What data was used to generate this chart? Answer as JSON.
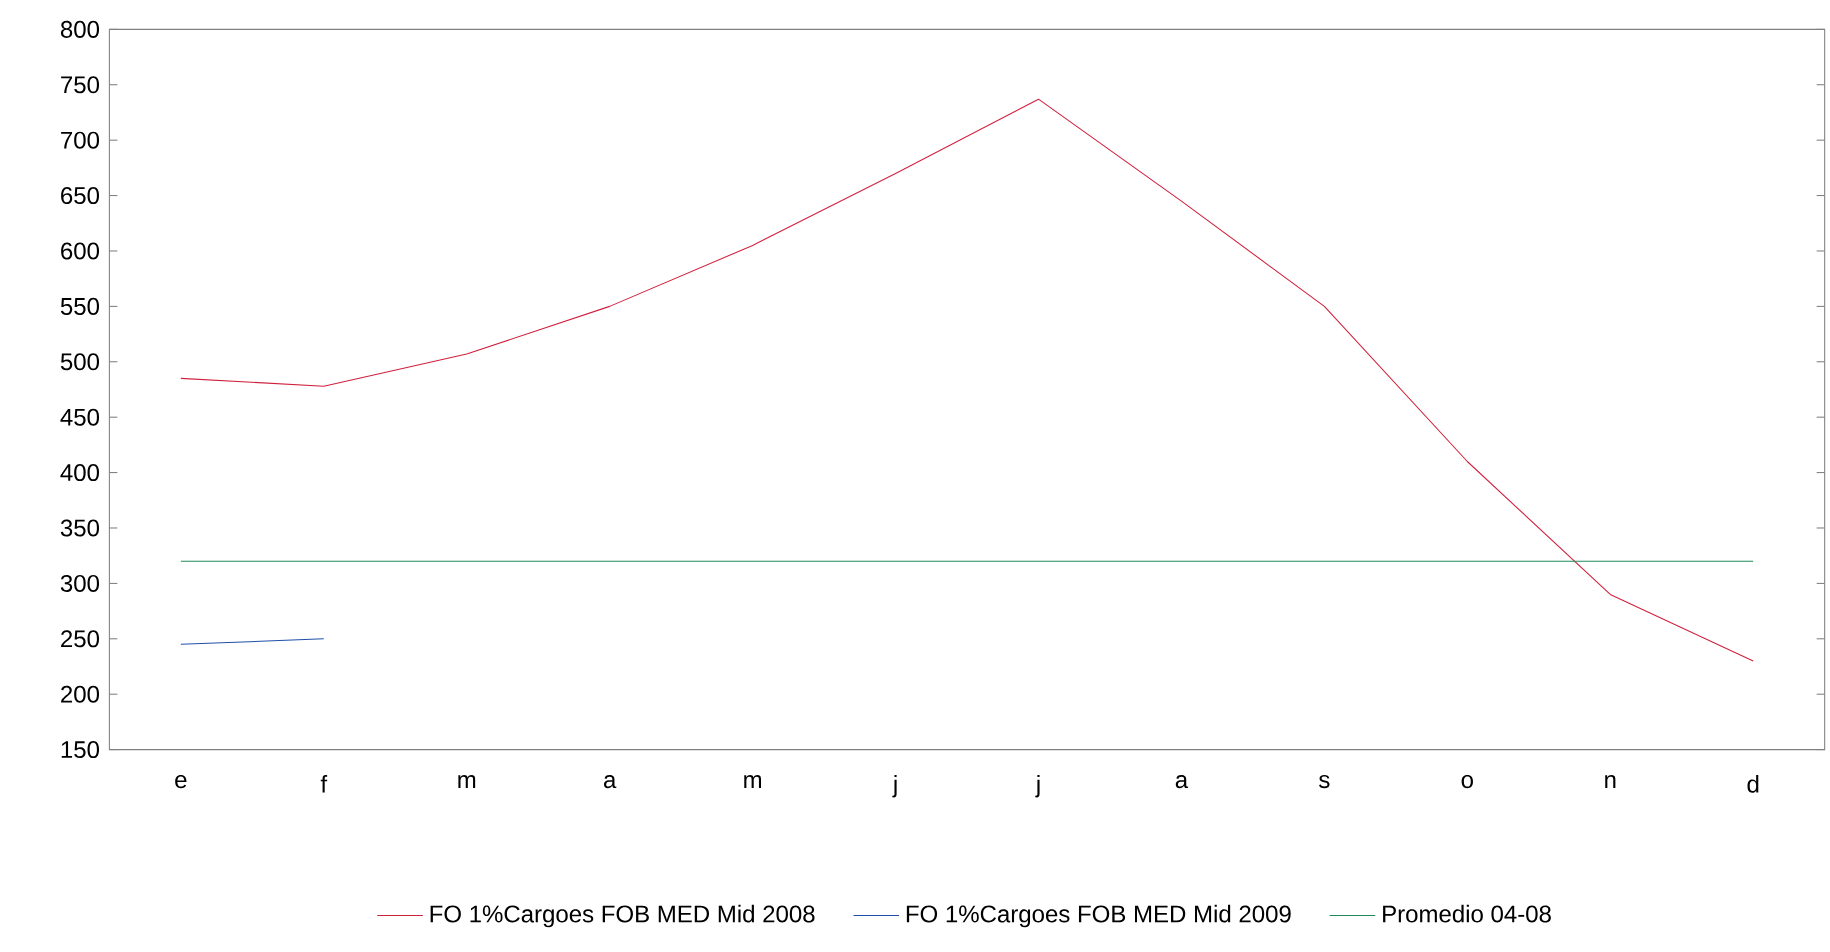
{
  "chart_data": {
    "type": "line",
    "categories": [
      "e",
      "f",
      "m",
      "a",
      "m",
      "j",
      "j",
      "a",
      "s",
      "o",
      "n",
      "d"
    ],
    "series": [
      {
        "name": "FO 1%Cargoes FOB MED Mid 2008",
        "color": "#d0203c",
        "values": [
          485,
          478,
          507,
          550,
          605,
          670,
          737,
          645,
          550,
          410,
          290,
          230
        ]
      },
      {
        "name": "FO 1%Cargoes FOB MED Mid 2009",
        "color": "#1f4fa8",
        "values": [
          245,
          250,
          null,
          null,
          null,
          null,
          null,
          null,
          null,
          null,
          null,
          null
        ]
      },
      {
        "name": "Promedio 04-08",
        "color": "#1e8a5a",
        "values": [
          320,
          320,
          320,
          320,
          320,
          320,
          320,
          320,
          320,
          320,
          320,
          320
        ]
      }
    ],
    "ylim": [
      150,
      800
    ],
    "yticks": [
      150,
      200,
      250,
      300,
      350,
      400,
      450,
      500,
      550,
      600,
      650,
      700,
      750,
      800
    ],
    "grid": false,
    "legend": "bottom",
    "marker": "none",
    "line_style": "solid"
  }
}
